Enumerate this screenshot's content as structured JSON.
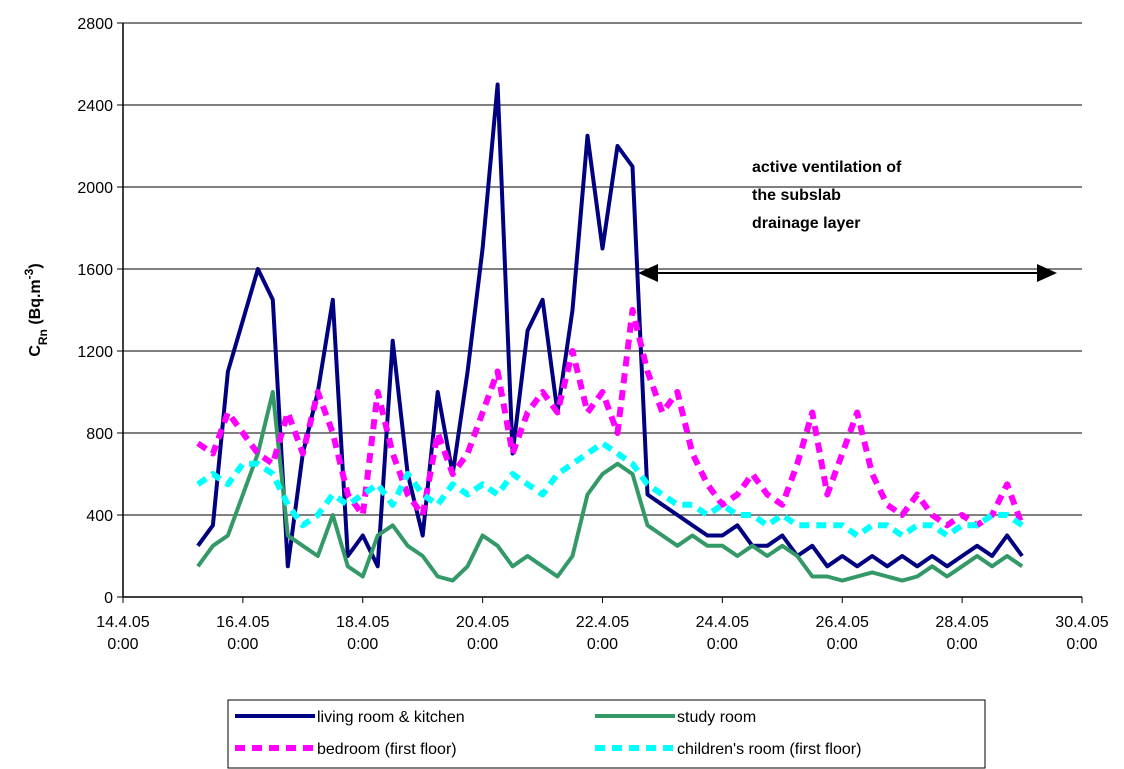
{
  "chart_data": {
    "type": "line",
    "y_label": [
      "C",
      "Rn",
      " (Bq.m",
      "-3",
      ")"
    ],
    "annotation": [
      "active ventilation of",
      "the subslab",
      "drainage layer"
    ],
    "x": [
      "15.4.05 6:00",
      "15.4.05 12:00",
      "15.4.05 18:00",
      "16.4.05 0:00",
      "16.4.05 6:00",
      "16.4.05 12:00",
      "16.4.05 18:00",
      "17.4.05 0:00",
      "17.4.05 6:00",
      "17.4.05 12:00",
      "17.4.05 18:00",
      "18.4.05 0:00",
      "18.4.05 6:00",
      "18.4.05 12:00",
      "18.4.05 18:00",
      "19.4.05 0:00",
      "19.4.05 6:00",
      "19.4.05 12:00",
      "19.4.05 18:00",
      "20.4.05 0:00",
      "20.4.05 6:00",
      "20.4.05 12:00",
      "20.4.05 18:00",
      "21.4.05 0:00",
      "21.4.05 6:00",
      "21.4.05 12:00",
      "21.4.05 18:00",
      "22.4.05 0:00",
      "22.4.05 6:00",
      "22.4.05 12:00",
      "22.4.05 18:00",
      "23.4.05 0:00",
      "23.4.05 6:00",
      "23.4.05 12:00",
      "23.4.05 18:00",
      "24.4.05 0:00",
      "24.4.05 6:00",
      "24.4.05 12:00",
      "24.4.05 18:00",
      "25.4.05 0:00",
      "25.4.05 6:00",
      "25.4.05 12:00",
      "25.4.05 18:00",
      "26.4.05 0:00",
      "26.4.05 6:00",
      "26.4.05 12:00",
      "26.4.05 18:00",
      "27.4.05 0:00",
      "27.4.05 6:00",
      "27.4.05 12:00",
      "27.4.05 18:00",
      "28.4.05 0:00",
      "28.4.05 6:00",
      "28.4.05 12:00",
      "28.4.05 18:00",
      "29.4.05 0:00"
    ],
    "series": [
      {
        "name": "living room & kitchen",
        "color": "#000080",
        "dashed": false,
        "values": [
          250,
          350,
          1100,
          1350,
          1600,
          1450,
          150,
          700,
          1000,
          1450,
          200,
          300,
          150,
          1250,
          600,
          300,
          1000,
          600,
          1100,
          1700,
          2500,
          700,
          1300,
          1450,
          900,
          1400,
          2250,
          1700,
          2200,
          2100,
          500,
          450,
          400,
          350,
          300,
          300,
          350,
          250,
          250,
          300,
          200,
          250,
          150,
          200,
          150,
          200,
          150,
          200,
          150,
          200,
          150,
          200,
          250,
          200,
          300,
          200
        ]
      },
      {
        "name": "study room",
        "color": "#339966",
        "dashed": false,
        "values": [
          150,
          250,
          300,
          500,
          700,
          1000,
          300,
          250,
          200,
          400,
          150,
          100,
          300,
          350,
          250,
          200,
          100,
          80,
          150,
          300,
          250,
          150,
          200,
          150,
          100,
          200,
          500,
          600,
          650,
          600,
          350,
          300,
          250,
          300,
          250,
          250,
          200,
          250,
          200,
          250,
          200,
          100,
          100,
          80,
          100,
          120,
          100,
          80,
          100,
          150,
          100,
          150,
          200,
          150,
          200,
          150
        ]
      },
      {
        "name": "bedroom (first floor)",
        "color": "#ff00ff",
        "dashed": true,
        "values": [
          750,
          700,
          900,
          800,
          700,
          650,
          900,
          700,
          1000,
          800,
          500,
          400,
          1000,
          700,
          500,
          400,
          800,
          600,
          700,
          900,
          1100,
          700,
          900,
          1000,
          900,
          1200,
          900,
          1000,
          800,
          1400,
          1100,
          900,
          1000,
          700,
          550,
          450,
          500,
          600,
          500,
          450,
          650,
          900,
          500,
          700,
          900,
          600,
          450,
          400,
          500,
          400,
          350,
          400,
          350,
          400,
          550,
          350
        ]
      },
      {
        "name": "children's room (first floor)",
        "color": "#00ffff",
        "dashed": true,
        "values": [
          550,
          600,
          550,
          650,
          650,
          600,
          450,
          350,
          400,
          500,
          450,
          500,
          550,
          450,
          600,
          500,
          450,
          550,
          500,
          550,
          500,
          600,
          550,
          500,
          600,
          650,
          700,
          750,
          700,
          650,
          550,
          500,
          450,
          450,
          400,
          450,
          400,
          400,
          350,
          400,
          350,
          350,
          350,
          350,
          300,
          350,
          350,
          300,
          350,
          350,
          300,
          350,
          350,
          400,
          400,
          350
        ]
      }
    ],
    "xlim": [
      "14.4.05 0:00",
      "30.4.05 0:00"
    ],
    "xticks": [
      "14.4.05 0:00",
      "16.4.05 0:00",
      "18.4.05 0:00",
      "20.4.05 0:00",
      "22.4.05 0:00",
      "24.4.05 0:00",
      "26.4.05 0:00",
      "28.4.05 0:00",
      "30.4.05 0:00"
    ],
    "ylim": [
      0,
      2800
    ],
    "yticks": [
      0,
      400,
      800,
      1200,
      1600,
      2000,
      2400,
      2800
    ],
    "grid": true
  }
}
